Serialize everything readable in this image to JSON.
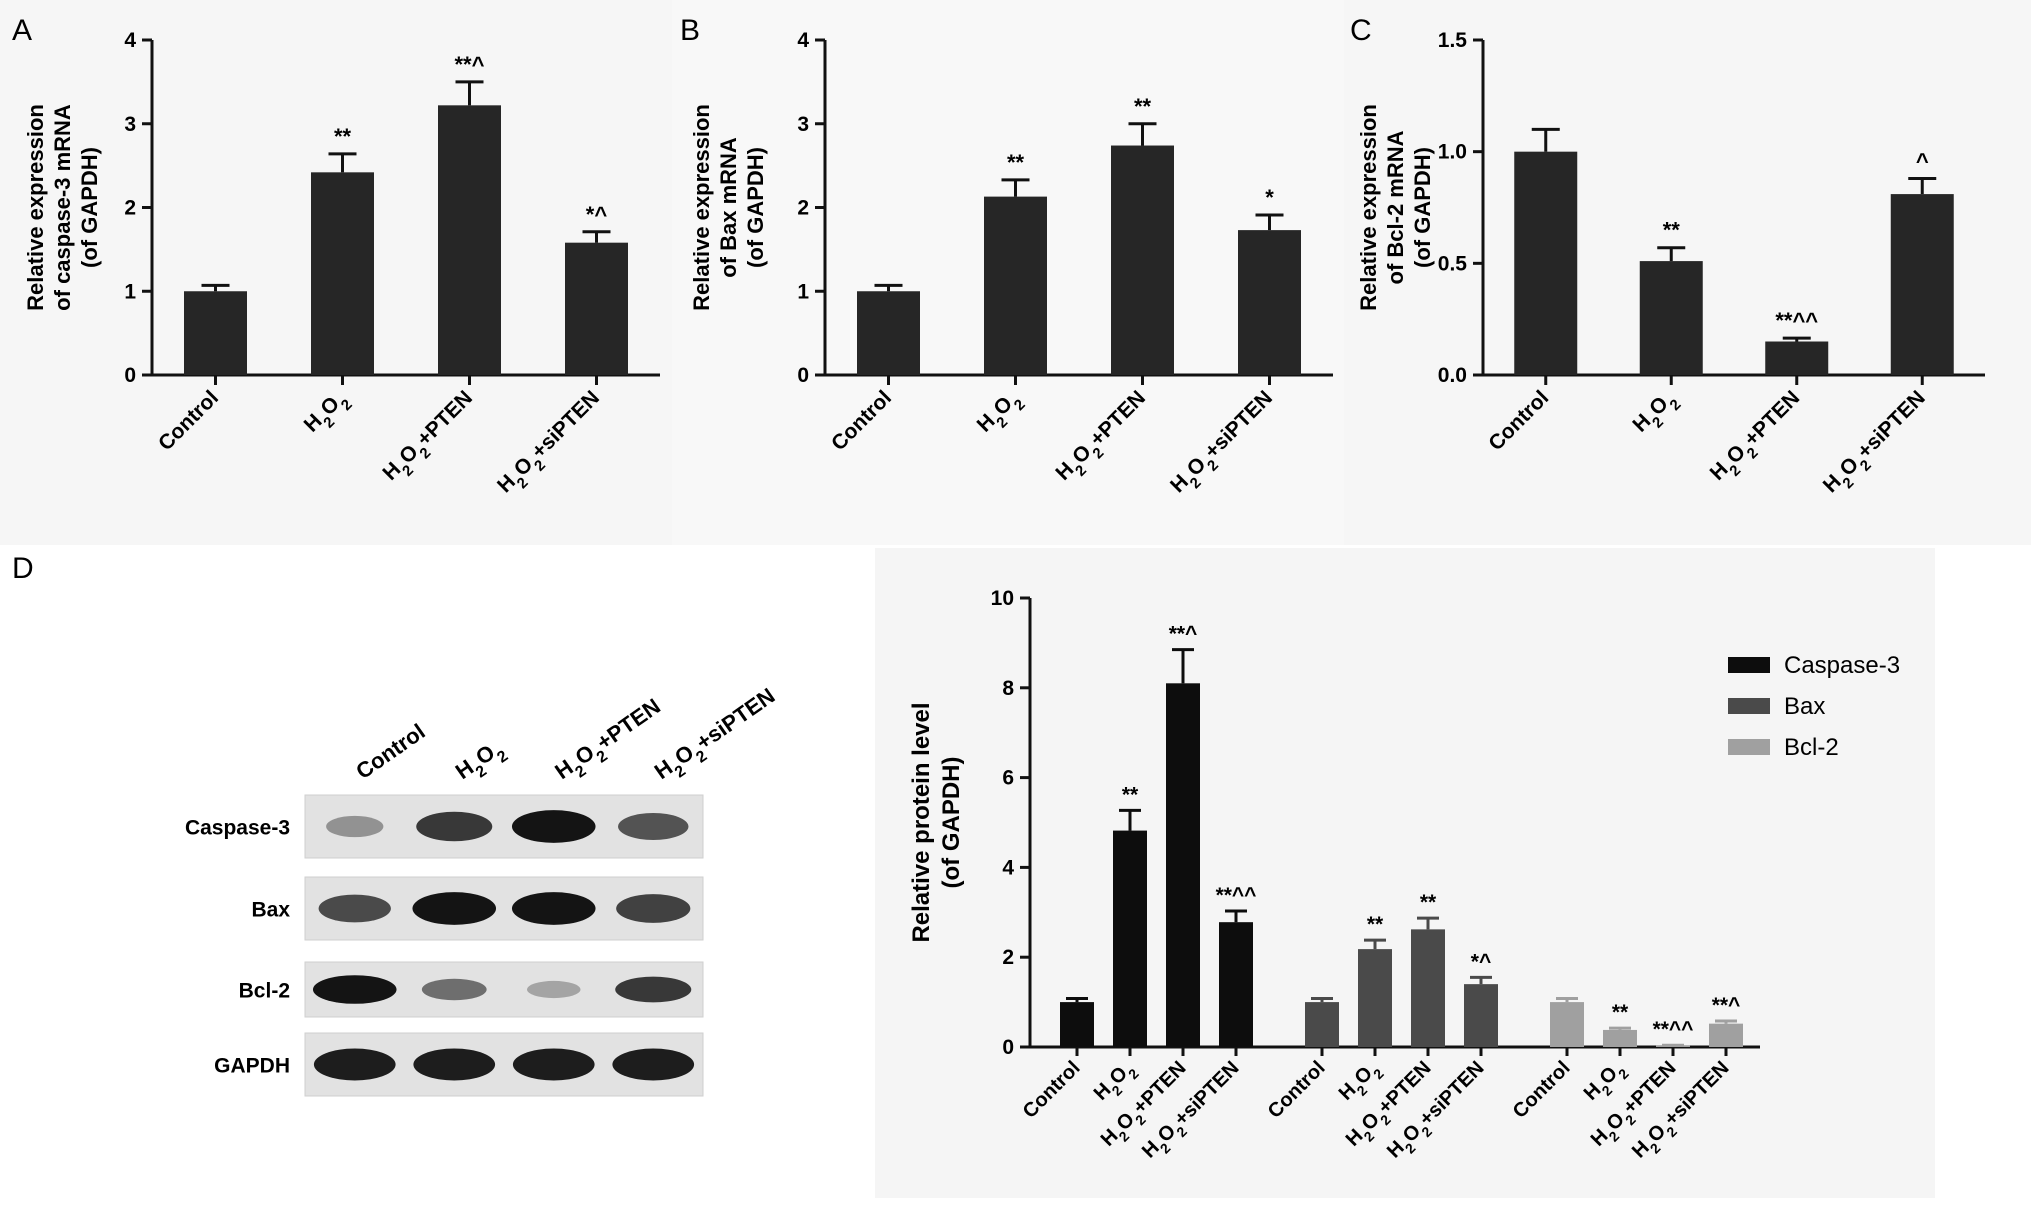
{
  "panels": {
    "A": "A",
    "B": "B",
    "C": "C",
    "D": "D"
  },
  "chart_data": [
    {
      "id": "A",
      "type": "bar",
      "categories": [
        "Control",
        "H2O2",
        "H2O2+PTEN",
        "H2O2+siPTEN"
      ],
      "values": [
        1.0,
        2.42,
        3.22,
        1.58
      ],
      "errors": [
        0.07,
        0.22,
        0.28,
        0.13
      ],
      "annotations": [
        "",
        "**",
        "**^",
        "*^"
      ],
      "ylabel_lines": [
        "Relative expression",
        "of caspase-3 mRNA",
        "(of GAPDH)"
      ],
      "yticks": [
        "0",
        "1",
        "2",
        "3",
        "4"
      ],
      "ylim": [
        0,
        4
      ],
      "bar_color": "#262626"
    },
    {
      "id": "B",
      "type": "bar",
      "categories": [
        "Control",
        "H2O2",
        "H2O2+PTEN",
        "H2O2+siPTEN"
      ],
      "values": [
        1.0,
        2.13,
        2.74,
        1.73
      ],
      "errors": [
        0.07,
        0.2,
        0.26,
        0.18
      ],
      "annotations": [
        "",
        "**",
        "**",
        "*"
      ],
      "ylabel_lines": [
        "Relative expression",
        "of Bax mRNA",
        "(of GAPDH)"
      ],
      "yticks": [
        "0",
        "1",
        "2",
        "3",
        "4"
      ],
      "ylim": [
        0,
        4
      ],
      "bar_color": "#262626"
    },
    {
      "id": "C",
      "type": "bar",
      "categories": [
        "Control",
        "H2O2",
        "H2O2+PTEN",
        "H2O2+siPTEN"
      ],
      "values": [
        1.0,
        0.51,
        0.15,
        0.81
      ],
      "errors": [
        0.1,
        0.06,
        0.015,
        0.07
      ],
      "annotations": [
        "",
        "**",
        "**^^",
        "^"
      ],
      "ylabel_lines": [
        "Relative expression",
        "of Bcl-2 mRNA",
        "(of GAPDH)"
      ],
      "yticks": [
        "0.0",
        "0.5",
        "1.0",
        "1.5"
      ],
      "ylim": [
        0,
        1.5
      ],
      "bar_color": "#262626"
    },
    {
      "id": "D",
      "type": "bar",
      "categories": [
        "Control",
        "H2O2",
        "H2O2+PTEN",
        "H2O2+siPTEN"
      ],
      "series": [
        {
          "name": "Caspase-3",
          "color": "#0d0d0d",
          "values": [
            1.0,
            4.82,
            8.1,
            2.78
          ],
          "errors": [
            0.08,
            0.45,
            0.75,
            0.25
          ],
          "annotations": [
            "",
            "**",
            "**^",
            "**^^"
          ]
        },
        {
          "name": "Bax",
          "color": "#4a4a4a",
          "values": [
            1.0,
            2.18,
            2.62,
            1.4
          ],
          "errors": [
            0.08,
            0.2,
            0.25,
            0.15
          ],
          "annotations": [
            "",
            "**",
            "**",
            "*^"
          ]
        },
        {
          "name": "Bcl-2",
          "color": "#a0a0a0",
          "values": [
            1.0,
            0.38,
            0.03,
            0.52
          ],
          "errors": [
            0.08,
            0.04,
            0.01,
            0.06
          ],
          "annotations": [
            "",
            "**",
            "**^^",
            "**^"
          ]
        }
      ],
      "ylabel_lines": [
        "Relative protein level",
        "(of  GAPDH)"
      ],
      "yticks": [
        "0",
        "2",
        "4",
        "6",
        "8",
        "10"
      ],
      "ylim": [
        0,
        10
      ],
      "legend_position": "top-right"
    }
  ],
  "blot": {
    "column_labels": [
      "Control",
      "H2O2",
      "H2O2+PTEN",
      "H2O2+siPTEN"
    ],
    "row_labels": [
      "Caspase-3",
      "Bax",
      "Bcl-2",
      "GAPDH"
    ],
    "intensity": [
      [
        0.3,
        0.8,
        1.0,
        0.65
      ],
      [
        0.7,
        1.0,
        1.0,
        0.75
      ],
      [
        1.0,
        0.5,
        0.2,
        0.8
      ],
      [
        0.95,
        0.95,
        0.95,
        0.95
      ]
    ]
  }
}
